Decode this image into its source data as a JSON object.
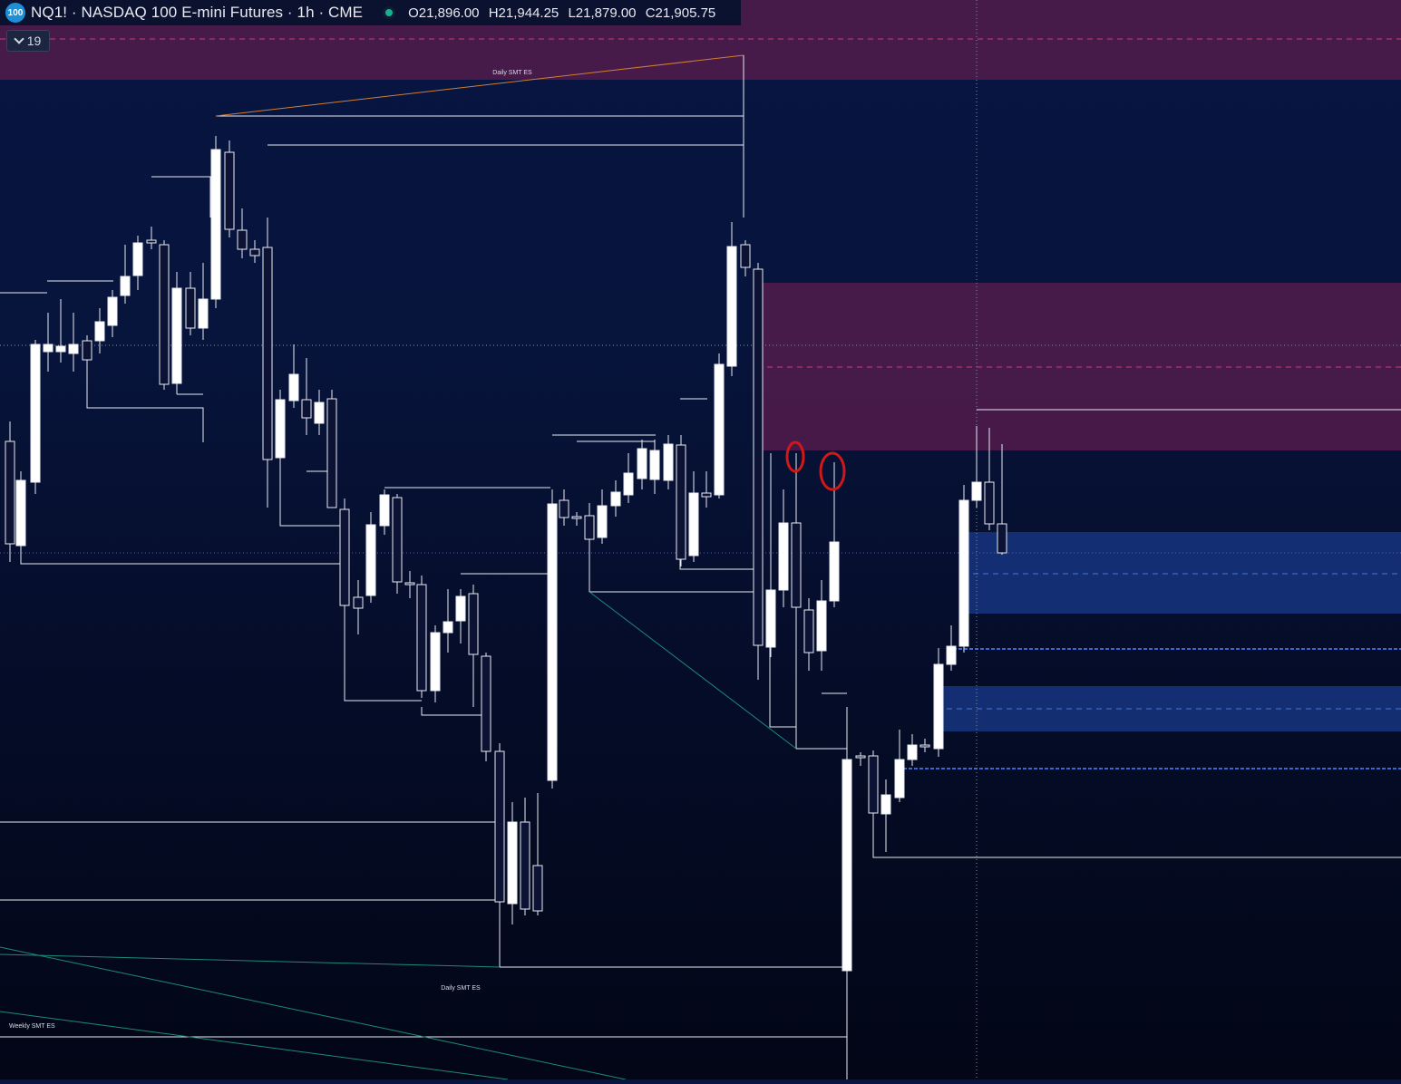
{
  "header": {
    "badge": "100",
    "title": "NQ1! · NASDAQ 100 E-mini Futures · 1h · CME",
    "open": "O21,896.00",
    "high": "H21,944.25",
    "low": "L21,879.00",
    "close": "C21,905.75"
  },
  "indicators": {
    "count": "19"
  },
  "annotations": {
    "smt_top": "Daily SMT ES",
    "smt_bottom": "Daily SMT ES",
    "smt_left": "Weekly SMT ES"
  },
  "colors": {
    "bull_body": "#ffffff",
    "bear_body": "#0b1233",
    "supply_zone": "#4a1a4a",
    "demand_zone": "#15327a",
    "highlight_circle": "#d01818",
    "diagonal_line": "#1e8a7a",
    "smt_line": "#d08030"
  }
}
